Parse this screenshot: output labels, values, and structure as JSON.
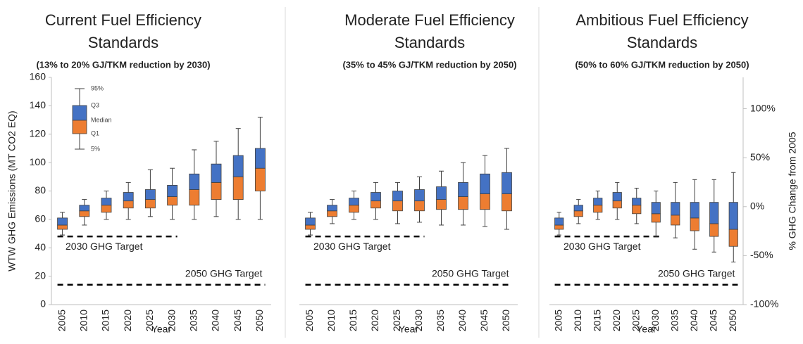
{
  "chart_data": [
    {
      "type": "box",
      "title": [
        "Current Fuel Efficiency",
        "Standards"
      ],
      "subtitle": "(13% to 20% GJ/TKM reduction by 2030)",
      "y_label": "WTW GHG Emissions (MT CO2 EQ)",
      "x_label": "Year",
      "categories": [
        "2005",
        "2010",
        "2015",
        "2020",
        "2025",
        "2030",
        "2035",
        "2040",
        "2045",
        "2050"
      ],
      "stats": {
        "p5": [
          49,
          56,
          60,
          60,
          62,
          60,
          60,
          62,
          60,
          60
        ],
        "q1": [
          53,
          62,
          65,
          68,
          68,
          70,
          70,
          74,
          74,
          80
        ],
        "median": [
          56,
          66,
          70,
          73,
          74,
          76,
          81,
          86,
          90,
          96
        ],
        "q3": [
          61,
          70,
          75,
          79,
          81,
          84,
          92,
          99,
          105,
          110
        ],
        "p95": [
          65,
          74,
          80,
          86,
          95,
          96,
          109,
          115,
          124,
          132
        ]
      },
      "upper_color": "#4472c4",
      "lower_color": "#ed7d31",
      "ylim": [
        0,
        160
      ],
      "yticks": [
        0,
        20,
        40,
        60,
        80,
        100,
        120,
        140,
        160
      ],
      "legend_labels": [
        "95%",
        "Q3",
        "Median",
        "Q1",
        "5%"
      ],
      "reference_lines": [
        {
          "label": "2030 GHG Target",
          "value": 48,
          "until": "2030"
        },
        {
          "label": "2050 GHG Target",
          "value": 14,
          "until": "2050"
        }
      ]
    },
    {
      "type": "box",
      "title": [
        "Moderate Fuel Efficiency",
        "Standards"
      ],
      "subtitle": "(35% to 45% GJ/TKM reduction by 2050)",
      "x_label": "Year",
      "categories": [
        "2005",
        "2010",
        "2015",
        "2020",
        "2025",
        "2030",
        "2035",
        "2040",
        "2045",
        "2050"
      ],
      "stats": {
        "p5": [
          49,
          57,
          60,
          60,
          57,
          58,
          56,
          56,
          55,
          53
        ],
        "q1": [
          53,
          62,
          65,
          68,
          66,
          66,
          67,
          67,
          67,
          66
        ],
        "median": [
          56,
          66,
          70,
          73,
          73,
          73,
          74,
          76,
          78,
          78
        ],
        "q3": [
          61,
          70,
          75,
          79,
          80,
          81,
          83,
          86,
          92,
          93
        ],
        "p95": [
          65,
          74,
          80,
          86,
          86,
          90,
          94,
          100,
          105,
          110
        ]
      },
      "upper_color": "#4472c4",
      "lower_color": "#ed7d31",
      "ylim": [
        0,
        160
      ],
      "reference_lines": [
        {
          "label": "2030 GHG Target",
          "value": 48,
          "until": "2030"
        },
        {
          "label": "2050 GHG Target",
          "value": 14,
          "until": "2050"
        }
      ]
    },
    {
      "type": "box",
      "title": [
        "Ambitious Fuel Efficiency",
        "Standards"
      ],
      "subtitle": "(50% to 60% GJ/TKM reduction by 2050)",
      "x_label": "Year",
      "y2_label": "% GHG Change from 2005",
      "categories": [
        "2005",
        "2010",
        "2015",
        "2020",
        "2025",
        "2030",
        "2035",
        "2040",
        "2045",
        "2050"
      ],
      "stats": {
        "p5": [
          49,
          57,
          60,
          60,
          57,
          48,
          47,
          39,
          37,
          30
        ],
        "q1": [
          53,
          62,
          65,
          68,
          64,
          58,
          56,
          52,
          48,
          41
        ],
        "median": [
          56,
          66,
          70,
          73,
          70,
          64,
          63,
          61,
          57,
          53
        ],
        "q3": [
          61,
          70,
          75,
          79,
          75,
          72,
          72,
          72,
          72,
          72
        ],
        "p95": [
          65,
          74,
          80,
          86,
          82,
          80,
          86,
          88,
          88,
          93
        ]
      },
      "upper_color": "#4472c4",
      "lower_color": "#ed7d31",
      "ylim": [
        0,
        160
      ],
      "y2lim": [
        -100,
        132
      ],
      "y2ticks": [
        {
          "value": -100,
          "label": "-100%"
        },
        {
          "value": -50,
          "label": "-50%"
        },
        {
          "value": 0,
          "label": "0%"
        },
        {
          "value": 50,
          "label": "50%"
        },
        {
          "value": 100,
          "label": "100%"
        }
      ],
      "reference_lines": [
        {
          "label": "2030 GHG Target",
          "value": 48,
          "until": "2030"
        },
        {
          "label": "2050 GHG Target",
          "value": 14,
          "until": "2050"
        }
      ]
    }
  ]
}
